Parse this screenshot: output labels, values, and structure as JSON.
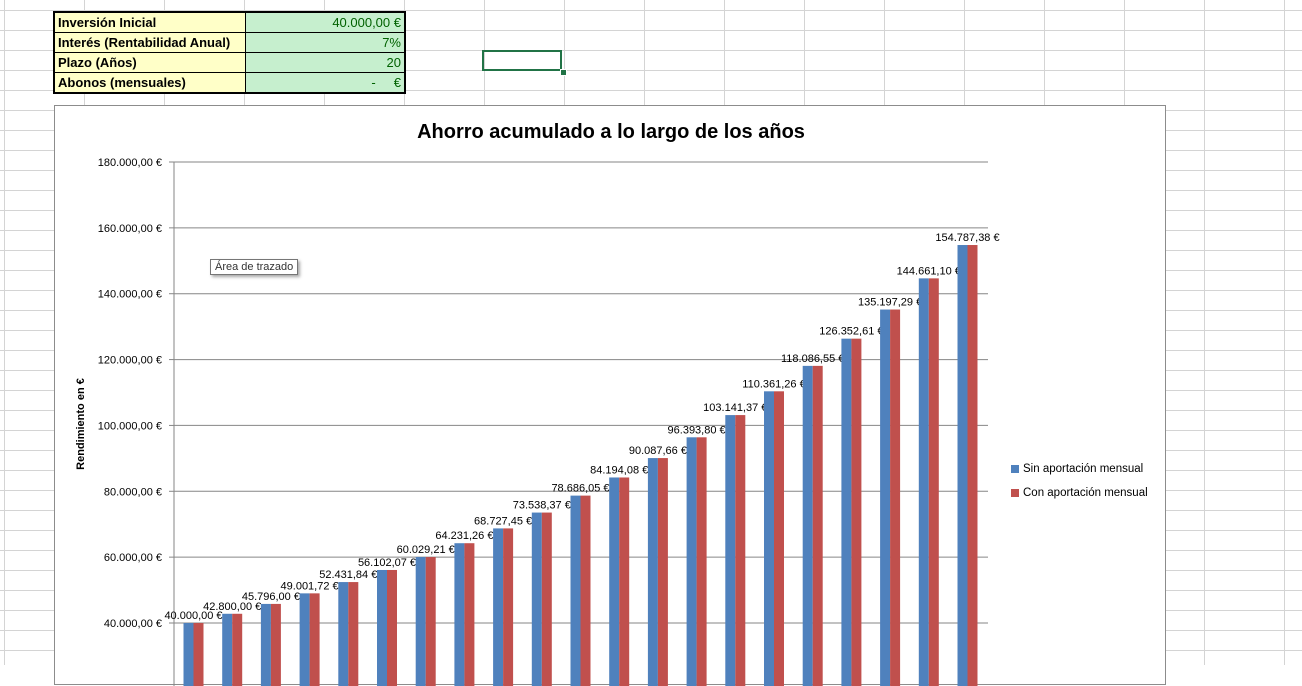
{
  "params": [
    {
      "label": "Inversión Inicial",
      "value": "40.000,00 €"
    },
    {
      "label": "Interés (Rentabilidad Anual)",
      "value": "7%"
    },
    {
      "label": "Plazo (Años)",
      "value": "20"
    },
    {
      "label": "Abonos (mensuales)",
      "value": "-     €"
    }
  ],
  "chart_tooltip": "Área de trazado",
  "chart_data": {
    "type": "bar",
    "title": "Ahorro acumulado a lo largo de los años",
    "ylabel": "Rendimiento en €",
    "ylim": [
      40000,
      180000
    ],
    "yticks": [
      "40.000,00 €",
      "60.000,00 €",
      "80.000,00 €",
      "100.000,00 €",
      "120.000,00 €",
      "140.000,00 €",
      "160.000,00 €",
      "180.000,00 €"
    ],
    "ytick_values": [
      40000,
      60000,
      80000,
      100000,
      120000,
      140000,
      160000,
      180000
    ],
    "legend_position": "right",
    "series": [
      {
        "name": "Sin aportación mensual",
        "color": "#4f81bd",
        "values": [
          40000,
          42800,
          45796,
          49001.72,
          52431.84,
          56102.07,
          60029.21,
          64231.26,
          68727.45,
          73538.37,
          78686.05,
          84194.08,
          90087.66,
          96393.8,
          103141.37,
          110361.26,
          118086.55,
          126352.61,
          135197.29,
          144661.1,
          154787.38
        ]
      },
      {
        "name": "Con aportación mensual",
        "color": "#c0504d",
        "values": [
          40000,
          42800,
          45796,
          49001.72,
          52431.84,
          56102.07,
          60029.21,
          64231.26,
          68727.45,
          73538.37,
          78686.05,
          84194.08,
          90087.66,
          96393.8,
          103141.37,
          110361.26,
          118086.55,
          126352.61,
          135197.29,
          144661.1,
          154787.38
        ]
      }
    ],
    "data_labels": [
      "40.000,00 €",
      "42.800,00 €",
      "45.796,00 €",
      "49.001,72 €",
      "52.431,84 €",
      "56.102,07 €",
      "60.029,21 €",
      "64.231,26 €",
      "68.727,45 €",
      "73.538,37 €",
      "78.686,05 €",
      "84.194,08 €",
      "90.087,66 €",
      "96.393,80 €",
      "103.141,37 €",
      "110.361,26 €",
      "118.086,55 €",
      "126.352,61 €",
      "135.197,29 €",
      "144.661,10 €",
      "154.787,38 €"
    ]
  }
}
